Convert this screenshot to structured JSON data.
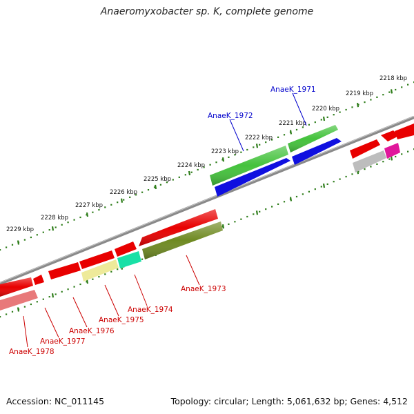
{
  "title": "Anaeromyxobacter sp. K, complete genome",
  "footer": {
    "accession": "Accession: NC_011145",
    "summary": "Topology: circular; Length: 5,061,632 bp; Genes: 4,512"
  },
  "ruler": {
    "ticks": [
      "2218 kbp",
      "2219 kbp",
      "2220 kbp",
      "2221 kbp",
      "2222 kbp",
      "2223 kbp",
      "2224 kbp",
      "2225 kbp",
      "2226 kbp",
      "2227 kbp",
      "2228 kbp",
      "2229 kbp"
    ]
  },
  "genes": {
    "plus_strand_labels": [
      "AnaeK_1971",
      "AnaeK_1972"
    ],
    "minus_strand_labels": [
      "AnaeK_1973",
      "AnaeK_1974",
      "AnaeK_1975",
      "AnaeK_1976",
      "AnaeK_1977",
      "AnaeK_1978"
    ]
  },
  "colors": {
    "plus_label": "#0000cc",
    "minus_label": "#cc0000",
    "backbone": "#888888",
    "tick": "#2e7d1a",
    "red": "#e80000",
    "green": "#44c23c",
    "blue": "#1010e0",
    "olive": "#6f8a22",
    "pale_yellow": "#eeea9a",
    "teal": "#19e0a6",
    "pink": "#e8797a",
    "grey": "#bdbdbd",
    "magenta": "#e0179b"
  }
}
